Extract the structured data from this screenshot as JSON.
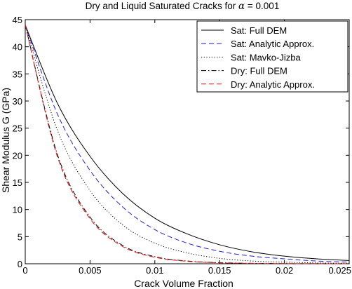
{
  "chart_data": {
    "type": "line",
    "title_prefix": "Dry and Liquid Saturated Cracks for ",
    "title_symbol": "α",
    "title_suffix": " = 0.001",
    "xlabel": "Crack Volume Fraction",
    "ylabel": "Shear Modulus G (GPa)",
    "xlim": [
      0,
      0.025
    ],
    "ylim": [
      0,
      45
    ],
    "xticks": [
      0,
      0.005,
      0.01,
      0.015,
      0.02,
      0.025
    ],
    "xtick_labels": [
      "0",
      "0.005",
      "0.01",
      "0.015",
      "0.02",
      "0.025"
    ],
    "yticks": [
      0,
      5,
      10,
      15,
      20,
      25,
      30,
      35,
      40,
      45
    ],
    "ytick_labels": [
      "0",
      "5",
      "10",
      "15",
      "20",
      "25",
      "30",
      "35",
      "40",
      "45"
    ],
    "grid": false,
    "legend_position": "top-right",
    "x": [
      0,
      0.0025,
      0.005,
      0.0075,
      0.01,
      0.0125,
      0.015,
      0.0175,
      0.02,
      0.0225,
      0.025
    ],
    "series": [
      {
        "name": "Sat: Full DEM",
        "style": "solid",
        "color": "#000000",
        "values": [
          44,
          29.5,
          19.8,
          13.0,
          8.4,
          5.5,
          3.5,
          2.2,
          1.4,
          0.9,
          0.6
        ]
      },
      {
        "name": "Sat: Analytic Approx.",
        "style": "dashed",
        "color": "#1f1fcc",
        "values": [
          44,
          27.5,
          17.2,
          10.5,
          6.3,
          3.8,
          2.3,
          1.4,
          0.9,
          0.5,
          0.3
        ]
      },
      {
        "name": "Sat: Mavko-Jizba",
        "style": "dotted",
        "color": "#000000",
        "values": [
          44,
          24.5,
          13.5,
          7.2,
          3.8,
          2.0,
          1.0,
          0.5,
          0.3,
          0.15,
          0.08
        ]
      },
      {
        "name": "Dry: Full DEM",
        "style": "dashdot",
        "color": "#000000",
        "values": [
          44,
          20.0,
          8.6,
          3.4,
          1.3,
          0.5,
          0.2,
          0.08,
          0.03,
          0.01,
          0.0
        ]
      },
      {
        "name": "Dry: Analytic Approx.",
        "style": "dashed",
        "color": "#dd1111",
        "values": [
          44,
          19.6,
          8.3,
          3.2,
          1.2,
          0.45,
          0.17,
          0.06,
          0.02,
          0.01,
          0.0
        ]
      }
    ]
  }
}
